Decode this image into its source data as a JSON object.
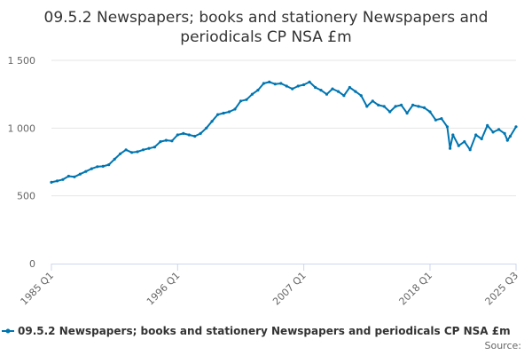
{
  "chart_data": {
    "type": "line",
    "title_lines": [
      "09.5.2 Newspapers; books and stationery Newspapers and",
      "periodicals CP NSA £m"
    ],
    "xlabel": "",
    "ylabel": "",
    "x_tick_labels": [
      "1985 Q1",
      "1996 Q1",
      "2007 Q1",
      "2018 Q1",
      "2025 Q3"
    ],
    "x_tick_values": [
      1985.0,
      1996.0,
      2007.0,
      2018.0,
      2025.5
    ],
    "xlim": [
      1985.0,
      2025.5
    ],
    "y_ticks": [
      0,
      500,
      1000,
      1500
    ],
    "y_tick_labels": [
      "0",
      "500",
      "1 000",
      "1 500"
    ],
    "ylim": [
      0,
      1500
    ],
    "grid": "horizontal",
    "legend": {
      "position": "bottom"
    },
    "line_color": "#0075b0",
    "series": [
      {
        "name": "09.5.2 Newspapers; books and stationery Newspapers and periodicals CP NSA £m",
        "points": [
          [
            1985.0,
            600
          ],
          [
            1985.5,
            610
          ],
          [
            1986.0,
            620
          ],
          [
            1986.5,
            645
          ],
          [
            1987.0,
            640
          ],
          [
            1987.5,
            660
          ],
          [
            1988.0,
            680
          ],
          [
            1988.5,
            700
          ],
          [
            1989.0,
            715
          ],
          [
            1989.5,
            718
          ],
          [
            1990.0,
            730
          ],
          [
            1990.5,
            770
          ],
          [
            1991.0,
            810
          ],
          [
            1991.5,
            840
          ],
          [
            1992.0,
            820
          ],
          [
            1992.5,
            825
          ],
          [
            1993.0,
            840
          ],
          [
            1993.5,
            850
          ],
          [
            1994.0,
            860
          ],
          [
            1994.5,
            900
          ],
          [
            1995.0,
            910
          ],
          [
            1995.5,
            905
          ],
          [
            1996.0,
            950
          ],
          [
            1996.5,
            960
          ],
          [
            1997.0,
            950
          ],
          [
            1997.5,
            940
          ],
          [
            1998.0,
            960
          ],
          [
            1998.5,
            1000
          ],
          [
            1999.0,
            1050
          ],
          [
            1999.5,
            1100
          ],
          [
            2000.0,
            1110
          ],
          [
            2000.5,
            1120
          ],
          [
            2001.0,
            1140
          ],
          [
            2001.5,
            1200
          ],
          [
            2002.0,
            1210
          ],
          [
            2002.5,
            1250
          ],
          [
            2003.0,
            1280
          ],
          [
            2003.5,
            1330
          ],
          [
            2004.0,
            1340
          ],
          [
            2004.5,
            1325
          ],
          [
            2005.0,
            1330
          ],
          [
            2005.5,
            1310
          ],
          [
            2006.0,
            1290
          ],
          [
            2006.5,
            1310
          ],
          [
            2007.0,
            1320
          ],
          [
            2007.5,
            1340
          ],
          [
            2008.0,
            1300
          ],
          [
            2008.5,
            1280
          ],
          [
            2009.0,
            1250
          ],
          [
            2009.5,
            1290
          ],
          [
            2010.0,
            1270
          ],
          [
            2010.5,
            1240
          ],
          [
            2011.0,
            1300
          ],
          [
            2011.5,
            1270
          ],
          [
            2012.0,
            1240
          ],
          [
            2012.5,
            1160
          ],
          [
            2013.0,
            1200
          ],
          [
            2013.5,
            1170
          ],
          [
            2014.0,
            1160
          ],
          [
            2014.5,
            1120
          ],
          [
            2015.0,
            1160
          ],
          [
            2015.5,
            1170
          ],
          [
            2016.0,
            1110
          ],
          [
            2016.5,
            1170
          ],
          [
            2017.0,
            1160
          ],
          [
            2017.5,
            1150
          ],
          [
            2018.0,
            1120
          ],
          [
            2018.5,
            1060
          ],
          [
            2019.0,
            1070
          ],
          [
            2019.5,
            1010
          ],
          [
            2019.75,
            850
          ],
          [
            2020.0,
            950
          ],
          [
            2020.5,
            870
          ],
          [
            2021.0,
            900
          ],
          [
            2021.5,
            840
          ],
          [
            2022.0,
            950
          ],
          [
            2022.5,
            920
          ],
          [
            2023.0,
            1020
          ],
          [
            2023.5,
            970
          ],
          [
            2024.0,
            990
          ],
          [
            2024.5,
            960
          ],
          [
            2024.75,
            910
          ],
          [
            2025.0,
            940
          ],
          [
            2025.5,
            1010
          ]
        ]
      }
    ]
  },
  "footer": {
    "source_label": "Source:"
  }
}
